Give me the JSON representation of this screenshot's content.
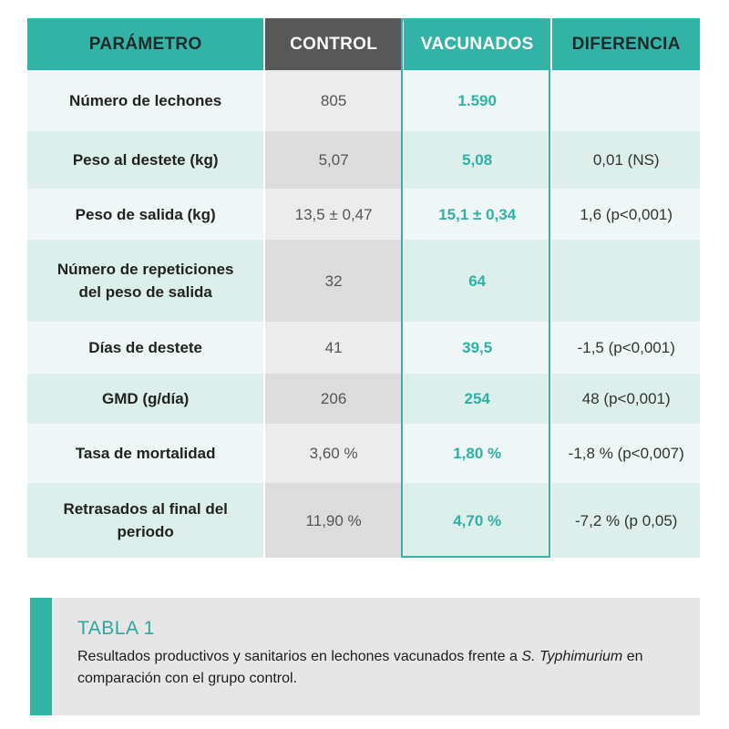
{
  "table": {
    "headers": [
      "PARÁMETRO",
      "CONTROL",
      "VACUNADOS",
      "DIFERENCIA"
    ],
    "rows": [
      {
        "param": "Número de lechones",
        "control": "805",
        "vacunados": "1.590",
        "diferencia": ""
      },
      {
        "param": "Peso al destete (kg)",
        "control": "5,07",
        "vacunados": "5,08",
        "diferencia": "0,01 (NS)"
      },
      {
        "param": "Peso de salida (kg)",
        "control": "13,5 ± 0,47",
        "vacunados": "15,1 ± 0,34",
        "diferencia": "1,6 (p<0,001)"
      },
      {
        "param_line1": "Número de repeticiones",
        "param_line2": "del peso de salida",
        "control": "32",
        "vacunados": "64",
        "diferencia": ""
      },
      {
        "param": "Días de destete",
        "control": "41",
        "vacunados": "39,5",
        "diferencia": "-1,5 (p<0,001)"
      },
      {
        "param": "GMD (g/día)",
        "control": "206",
        "vacunados": "254",
        "diferencia": "48 (p<0,001)"
      },
      {
        "param": "Tasa de mortalidad",
        "control": "3,60 %",
        "vacunados": "1,80 %",
        "diferencia": "-1,8 % (p<0,007)"
      },
      {
        "param_line1": "Retrasados al final del",
        "param_line2": "periodo",
        "control": "11,90 %",
        "vacunados": "4,70 %",
        "diferencia": "-7,2 % (p 0,05)"
      }
    ]
  },
  "caption": {
    "title": "TABLA 1",
    "text_before": "Resultados productivos y sanitarios en lechones vacunados frente a ",
    "text_italic": "S. Typhimurium",
    "text_after": " en comparación con el grupo control."
  },
  "colors": {
    "accent": "#33b3a5",
    "control_header": "#575757",
    "caption_bg": "#e6e6e6"
  }
}
